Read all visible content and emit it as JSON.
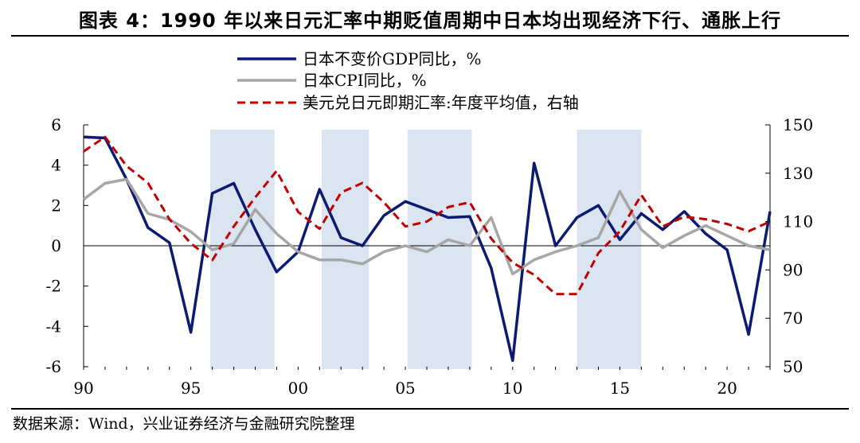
{
  "title": "图表 4：1990 年以来日元汇率中期贬值周期中日本均出现经济下行、通胀上行",
  "source": "数据来源：Wind，兴业证券经济与金融研究院整理",
  "colors": {
    "gdp": "#0d1a72",
    "cpi": "#a6a6a6",
    "fx": "#c00000",
    "shade": "#dbe4f1"
  },
  "chart_data": {
    "type": "line",
    "x_labels": [
      "90",
      "95",
      "00",
      "05",
      "10",
      "15",
      "20"
    ],
    "x_label_years": [
      1990,
      1995,
      2000,
      2005,
      2010,
      2015,
      2020
    ],
    "xlim": [
      1990,
      2022
    ],
    "ylim_left": [
      -6,
      6
    ],
    "yticks_left": [
      "6",
      "4",
      "2",
      "0",
      "-2",
      "-4",
      "-6"
    ],
    "ylim_right": [
      50,
      150
    ],
    "yticks_right": [
      "150",
      "130",
      "110",
      "90",
      "70",
      "50"
    ],
    "shaded_periods": [
      [
        1995.9,
        1998.9
      ],
      [
        2001.1,
        2003.3
      ],
      [
        2005.1,
        2008.1
      ],
      [
        2013.0,
        2016.0
      ]
    ],
    "series": [
      {
        "name": "日本不变价GDP同比，%",
        "axis": "left",
        "style": "solid",
        "color_key": "gdp",
        "x": [
          1990,
          1991,
          1992,
          1993,
          1994,
          1995,
          1996,
          1997,
          1998,
          1999,
          2000,
          2001,
          2002,
          2003,
          2004,
          2005,
          2006,
          2007,
          2008,
          2009,
          2010,
          2011,
          2012,
          2013,
          2014,
          2015,
          2016,
          2017,
          2018,
          2019,
          2020,
          2021,
          2022
        ],
        "values": [
          5.4,
          5.35,
          3.3,
          0.9,
          0.15,
          -4.3,
          2.6,
          3.1,
          0.8,
          -1.3,
          -0.3,
          2.8,
          0.4,
          0.0,
          1.5,
          2.2,
          1.8,
          1.4,
          1.45,
          -1.1,
          -5.7,
          4.1,
          0.0,
          1.4,
          2.0,
          0.3,
          1.6,
          0.8,
          1.7,
          0.6,
          -0.2,
          -4.4,
          1.7
        ]
      },
      {
        "name": "日本CPI同比，%",
        "axis": "left",
        "style": "solid",
        "color_key": "cpi",
        "x": [
          1990,
          1991,
          1992,
          1993,
          1994,
          1995,
          1996,
          1997,
          1998,
          1999,
          2000,
          2001,
          2002,
          2003,
          2004,
          2005,
          2006,
          2007,
          2008,
          2009,
          2010,
          2011,
          2012,
          2013,
          2014,
          2015,
          2016,
          2017,
          2018,
          2019,
          2020,
          2021,
          2022
        ],
        "values": [
          2.3,
          3.1,
          3.3,
          1.6,
          1.3,
          0.7,
          -0.2,
          0.1,
          1.8,
          0.6,
          -0.3,
          -0.7,
          -0.7,
          -0.9,
          -0.3,
          0.0,
          -0.3,
          0.3,
          0.0,
          1.4,
          -1.4,
          -0.7,
          -0.3,
          0.0,
          0.4,
          2.7,
          0.8,
          -0.1,
          0.5,
          1.0,
          0.5,
          0.0,
          -0.2
        ]
      },
      {
        "name": "美元兑日元即期汇率:年度平均值，右轴",
        "axis": "right",
        "style": "dashed",
        "color_key": "fx",
        "x": [
          1990,
          1991,
          1992,
          1993,
          1994,
          1995,
          1996,
          1997,
          1998,
          1999,
          2000,
          2001,
          2002,
          2003,
          2004,
          2005,
          2006,
          2007,
          2008,
          2009,
          2010,
          2011,
          2012,
          2013,
          2014,
          2015,
          2016,
          2017,
          2018,
          2019,
          2020,
          2021,
          2022
        ],
        "values": [
          139,
          145,
          133,
          126,
          111,
          101,
          94,
          108,
          120,
          131,
          114,
          107,
          122,
          126,
          118,
          108,
          110,
          116,
          118,
          103,
          93,
          88,
          80,
          80,
          97,
          106,
          121,
          108,
          112,
          111,
          109,
          106,
          110
        ]
      }
    ]
  }
}
